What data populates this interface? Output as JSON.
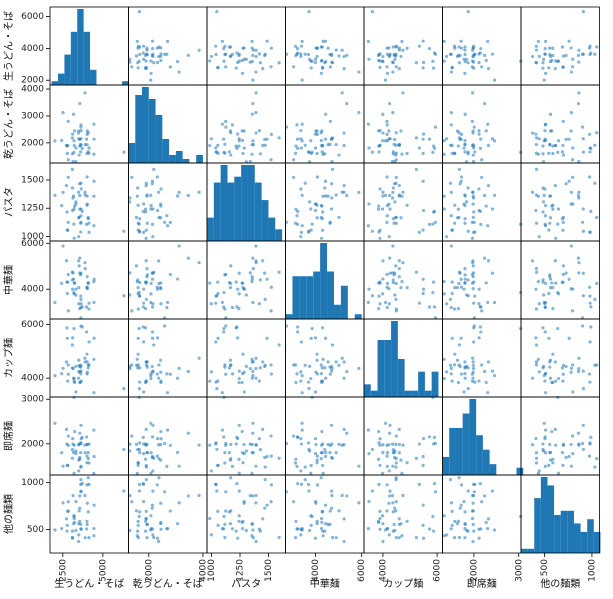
{
  "chart_data": {
    "type": "scatter",
    "variables": [
      "生うどん・そば",
      "乾うどん・そば",
      "パスタ",
      "中華麺",
      "カップ麺",
      "即席麺",
      "他の麺類"
    ],
    "ranges": [
      [
        1700,
        6600
      ],
      [
        1250,
        4150
      ],
      [
        960,
        1650
      ],
      [
        2700,
        6100
      ],
      [
        3300,
        6200
      ],
      [
        1300,
        3050
      ],
      [
        250,
        1080
      ]
    ],
    "ticks": [
      [
        2500,
        5000
      ],
      [
        2000,
        4000
      ],
      [
        1000,
        1250,
        1500
      ],
      [
        4000,
        6000
      ],
      [
        4000,
        6000
      ],
      [
        1000,
        2000,
        3000
      ],
      [
        500,
        1000
      ]
    ],
    "y_ticks": [
      [
        2000,
        4000,
        6000
      ],
      [
        2000,
        3000,
        4000
      ],
      [
        1000,
        1250,
        1500
      ],
      [
        4000,
        6000
      ],
      [
        4000,
        6000
      ],
      [
        1000,
        2000,
        3000
      ],
      [
        500,
        1000
      ]
    ],
    "point_color": "#1f77b4",
    "hist_color": "#1f77b4",
    "point_count": 50,
    "histograms": [
      {
        "edges": [
          1800,
          2200,
          2600,
          3000,
          3400,
          3800,
          4200,
          4600,
          5000,
          5400,
          5800,
          6200,
          6600
        ],
        "counts": [
          1,
          3,
          8,
          14,
          20,
          14,
          4,
          0,
          0,
          0,
          0,
          1
        ]
      },
      {
        "edges": [
          1250,
          1500,
          1750,
          2000,
          2250,
          2500,
          2750,
          3000,
          3250,
          3500,
          3750,
          4000
        ],
        "counts": [
          5,
          17,
          19,
          16,
          12,
          6,
          2,
          3,
          1,
          0,
          2
        ]
      },
      {
        "edges": [
          960,
          1020,
          1080,
          1140,
          1200,
          1260,
          1320,
          1380,
          1440,
          1500,
          1560,
          1620
        ],
        "counts": [
          4,
          10,
          13,
          10,
          11,
          13,
          13,
          10,
          7,
          4,
          2
        ]
      },
      {
        "edges": [
          2700,
          3000,
          3300,
          3600,
          3900,
          4200,
          4500,
          4800,
          5100,
          5400,
          5700,
          6000
        ],
        "counts": [
          1,
          9,
          9,
          9,
          10,
          16,
          10,
          3,
          7,
          0,
          1
        ]
      },
      {
        "edges": [
          3300,
          3550,
          3800,
          4050,
          4300,
          4550,
          4800,
          5050,
          5300,
          5550,
          5800,
          6050
        ],
        "counts": [
          2,
          1,
          9,
          9,
          12,
          6,
          1,
          1,
          4,
          1,
          4
        ]
      },
      {
        "edges": [
          1300,
          1450,
          1600,
          1750,
          1900,
          2050,
          2200,
          2350,
          2500,
          2650,
          2800,
          2950,
          3100
        ],
        "counts": [
          5,
          13,
          13,
          17,
          21,
          11,
          7,
          3,
          0,
          0,
          0,
          2
        ]
      },
      {
        "edges": [
          250,
          320,
          390,
          460,
          530,
          600,
          670,
          740,
          810,
          880,
          950,
          1020,
          1090
        ],
        "counts": [
          1,
          1,
          13,
          18,
          16,
          9,
          10,
          10,
          7,
          5,
          8,
          5
        ]
      }
    ]
  }
}
